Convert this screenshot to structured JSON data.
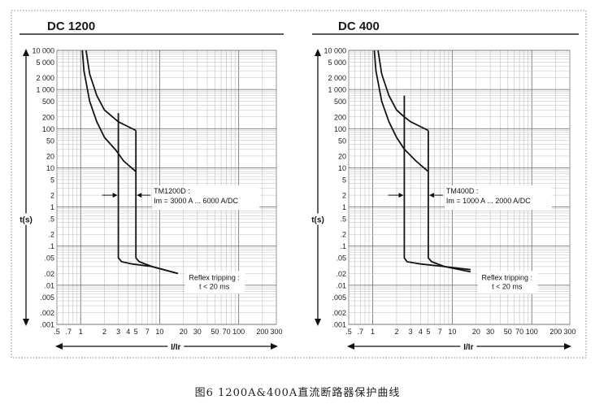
{
  "caption": "图6   1200A&400A直流断路器保护曲线",
  "chart_data": [
    {
      "type": "line",
      "title": "DC 1200",
      "xlabel": "I/Ir",
      "ylabel": "t(s)",
      "x_scale": "log",
      "y_scale": "log",
      "xlim": [
        0.5,
        300
      ],
      "ylim": [
        0.001,
        10000
      ],
      "grid": true,
      "x_ticks": [
        ".5",
        ".7",
        "1",
        "2",
        "3",
        "4",
        "5",
        "7",
        "10",
        "20",
        "30",
        "50",
        "70",
        "100",
        "200",
        "300"
      ],
      "y_ticks": [
        "10 000",
        "5 000",
        "2 000",
        "1 000",
        "500",
        "200",
        "100",
        "50",
        "20",
        "10",
        "5",
        "2",
        "1",
        ".5",
        ".2",
        ".1",
        ".05",
        ".02",
        ".01",
        ".005",
        ".002",
        ".001"
      ],
      "series": [
        {
          "x": [
            1.05,
            1.1,
            1.3,
            1.6,
            2.0,
            2.8,
            3.5,
            5.0
          ],
          "y": [
            10000,
            3000,
            500,
            150,
            60,
            28,
            15,
            8
          ]
        },
        {
          "x": [
            1.17,
            1.3,
            1.6,
            2.0,
            3.0,
            5.0
          ],
          "y": [
            10000,
            2500,
            700,
            300,
            150,
            90
          ]
        },
        {
          "x": [
            3.0,
            3.0,
            3.0,
            3.3,
            4.5,
            8.0,
            17.0
          ],
          "y": [
            250,
            3,
            0.05,
            0.04,
            0.035,
            0.03,
            0.02
          ]
        },
        {
          "x": [
            5.0,
            5.0,
            5.0,
            5.5,
            8.0,
            17.0
          ],
          "y": [
            90,
            2,
            0.05,
            0.04,
            0.03,
            0.02
          ]
        }
      ],
      "annotations": {
        "device": "TM1200D :",
        "range": "Im = 3000 A ... 6000 A/DC",
        "reflex_1": "Reflex tripping :",
        "reflex_2": "t < 20 ms"
      }
    },
    {
      "type": "line",
      "title": "DC 400",
      "xlabel": "I/Ir",
      "ylabel": "t(s)",
      "x_scale": "log",
      "y_scale": "log",
      "xlim": [
        0.5,
        300
      ],
      "ylim": [
        0.001,
        10000
      ],
      "grid": true,
      "x_ticks": [
        ".5",
        ".7",
        "1",
        "2",
        "3",
        "4",
        "5",
        "7",
        "10",
        "20",
        "30",
        "50",
        "70",
        "100",
        "200",
        "300"
      ],
      "y_ticks": [
        "10 000",
        "5 000",
        "2 000",
        "1 000",
        "500",
        "200",
        "100",
        "50",
        "20",
        "10",
        "5",
        "2",
        "1",
        ".5",
        ".2",
        ".1",
        ".05",
        ".02",
        ".01",
        ".005",
        ".002",
        ".001"
      ],
      "series": [
        {
          "x": [
            1.05,
            1.1,
            1.3,
            1.6,
            2.0,
            2.5,
            3.5,
            5.0
          ],
          "y": [
            10000,
            3000,
            500,
            150,
            60,
            30,
            15,
            8
          ]
        },
        {
          "x": [
            1.17,
            1.3,
            1.6,
            2.0,
            2.5,
            3.0,
            5.0
          ],
          "y": [
            10000,
            2500,
            700,
            300,
            200,
            150,
            90
          ]
        },
        {
          "x": [
            2.5,
            2.5,
            2.5,
            2.7,
            4.0,
            8.0,
            17.0
          ],
          "y": [
            700,
            2,
            0.05,
            0.04,
            0.035,
            0.03,
            0.025
          ]
        },
        {
          "x": [
            5.0,
            5.0,
            5.0,
            5.5,
            8.0,
            17.0
          ],
          "y": [
            90,
            2,
            0.05,
            0.04,
            0.03,
            0.022
          ]
        }
      ],
      "annotations": {
        "device": "TM400D :",
        "range": "Im = 1000 A ... 2000 A/DC",
        "reflex_1": "Reflex tripping :",
        "reflex_2": "t < 20 ms"
      }
    }
  ]
}
